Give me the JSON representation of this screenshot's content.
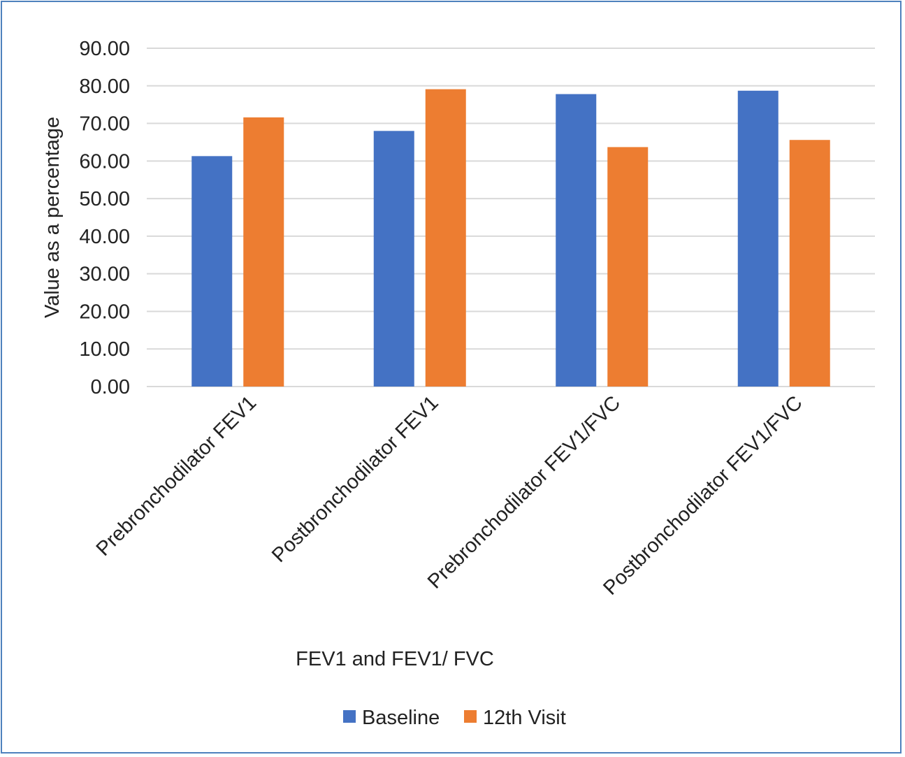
{
  "chart_data": {
    "type": "bar",
    "title": "",
    "xlabel": "FEV1 and FEV1/ FVC",
    "ylabel": "Value as a percentage",
    "ylim": [
      0,
      90
    ],
    "yticks": [
      "0.00",
      "10.00",
      "20.00",
      "30.00",
      "40.00",
      "50.00",
      "60.00",
      "70.00",
      "80.00",
      "90.00"
    ],
    "grid": true,
    "legend_position": "bottom",
    "categories": [
      "Prebronchodilator FEV1",
      "Postbronchodilator FEV1",
      "Prebronchodilator FEV1/FVC",
      "Postbronchodilator FEV1/FVC"
    ],
    "series": [
      {
        "name": "Baseline",
        "color": "#4472c4",
        "values": [
          61.3,
          68.0,
          77.8,
          78.7
        ]
      },
      {
        "name": "12th Visit",
        "color": "#ed7d31",
        "values": [
          71.6,
          79.1,
          63.7,
          65.6
        ]
      }
    ]
  }
}
